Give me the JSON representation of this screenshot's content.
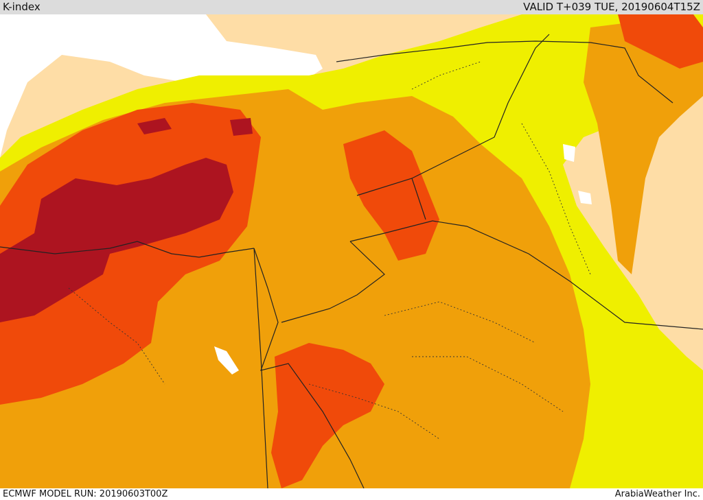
{
  "header": {
    "parameter": "K-index",
    "valid_time": "VALID T+039 TUE, 20190604T15Z"
  },
  "footer": {
    "model_run": "ECMWF MODEL RUN: 20190603T00Z",
    "credit": "ArabiaWeather Inc."
  },
  "map": {
    "colors": {
      "background_land": "#fedda6",
      "yellow_band": "#efef00",
      "orange_band": "#f0a00a",
      "red_orange_band": "#f04a0a",
      "dark_red_band": "#ad1420",
      "sea": "#ffffff",
      "border_lines": "#222222"
    }
  }
}
